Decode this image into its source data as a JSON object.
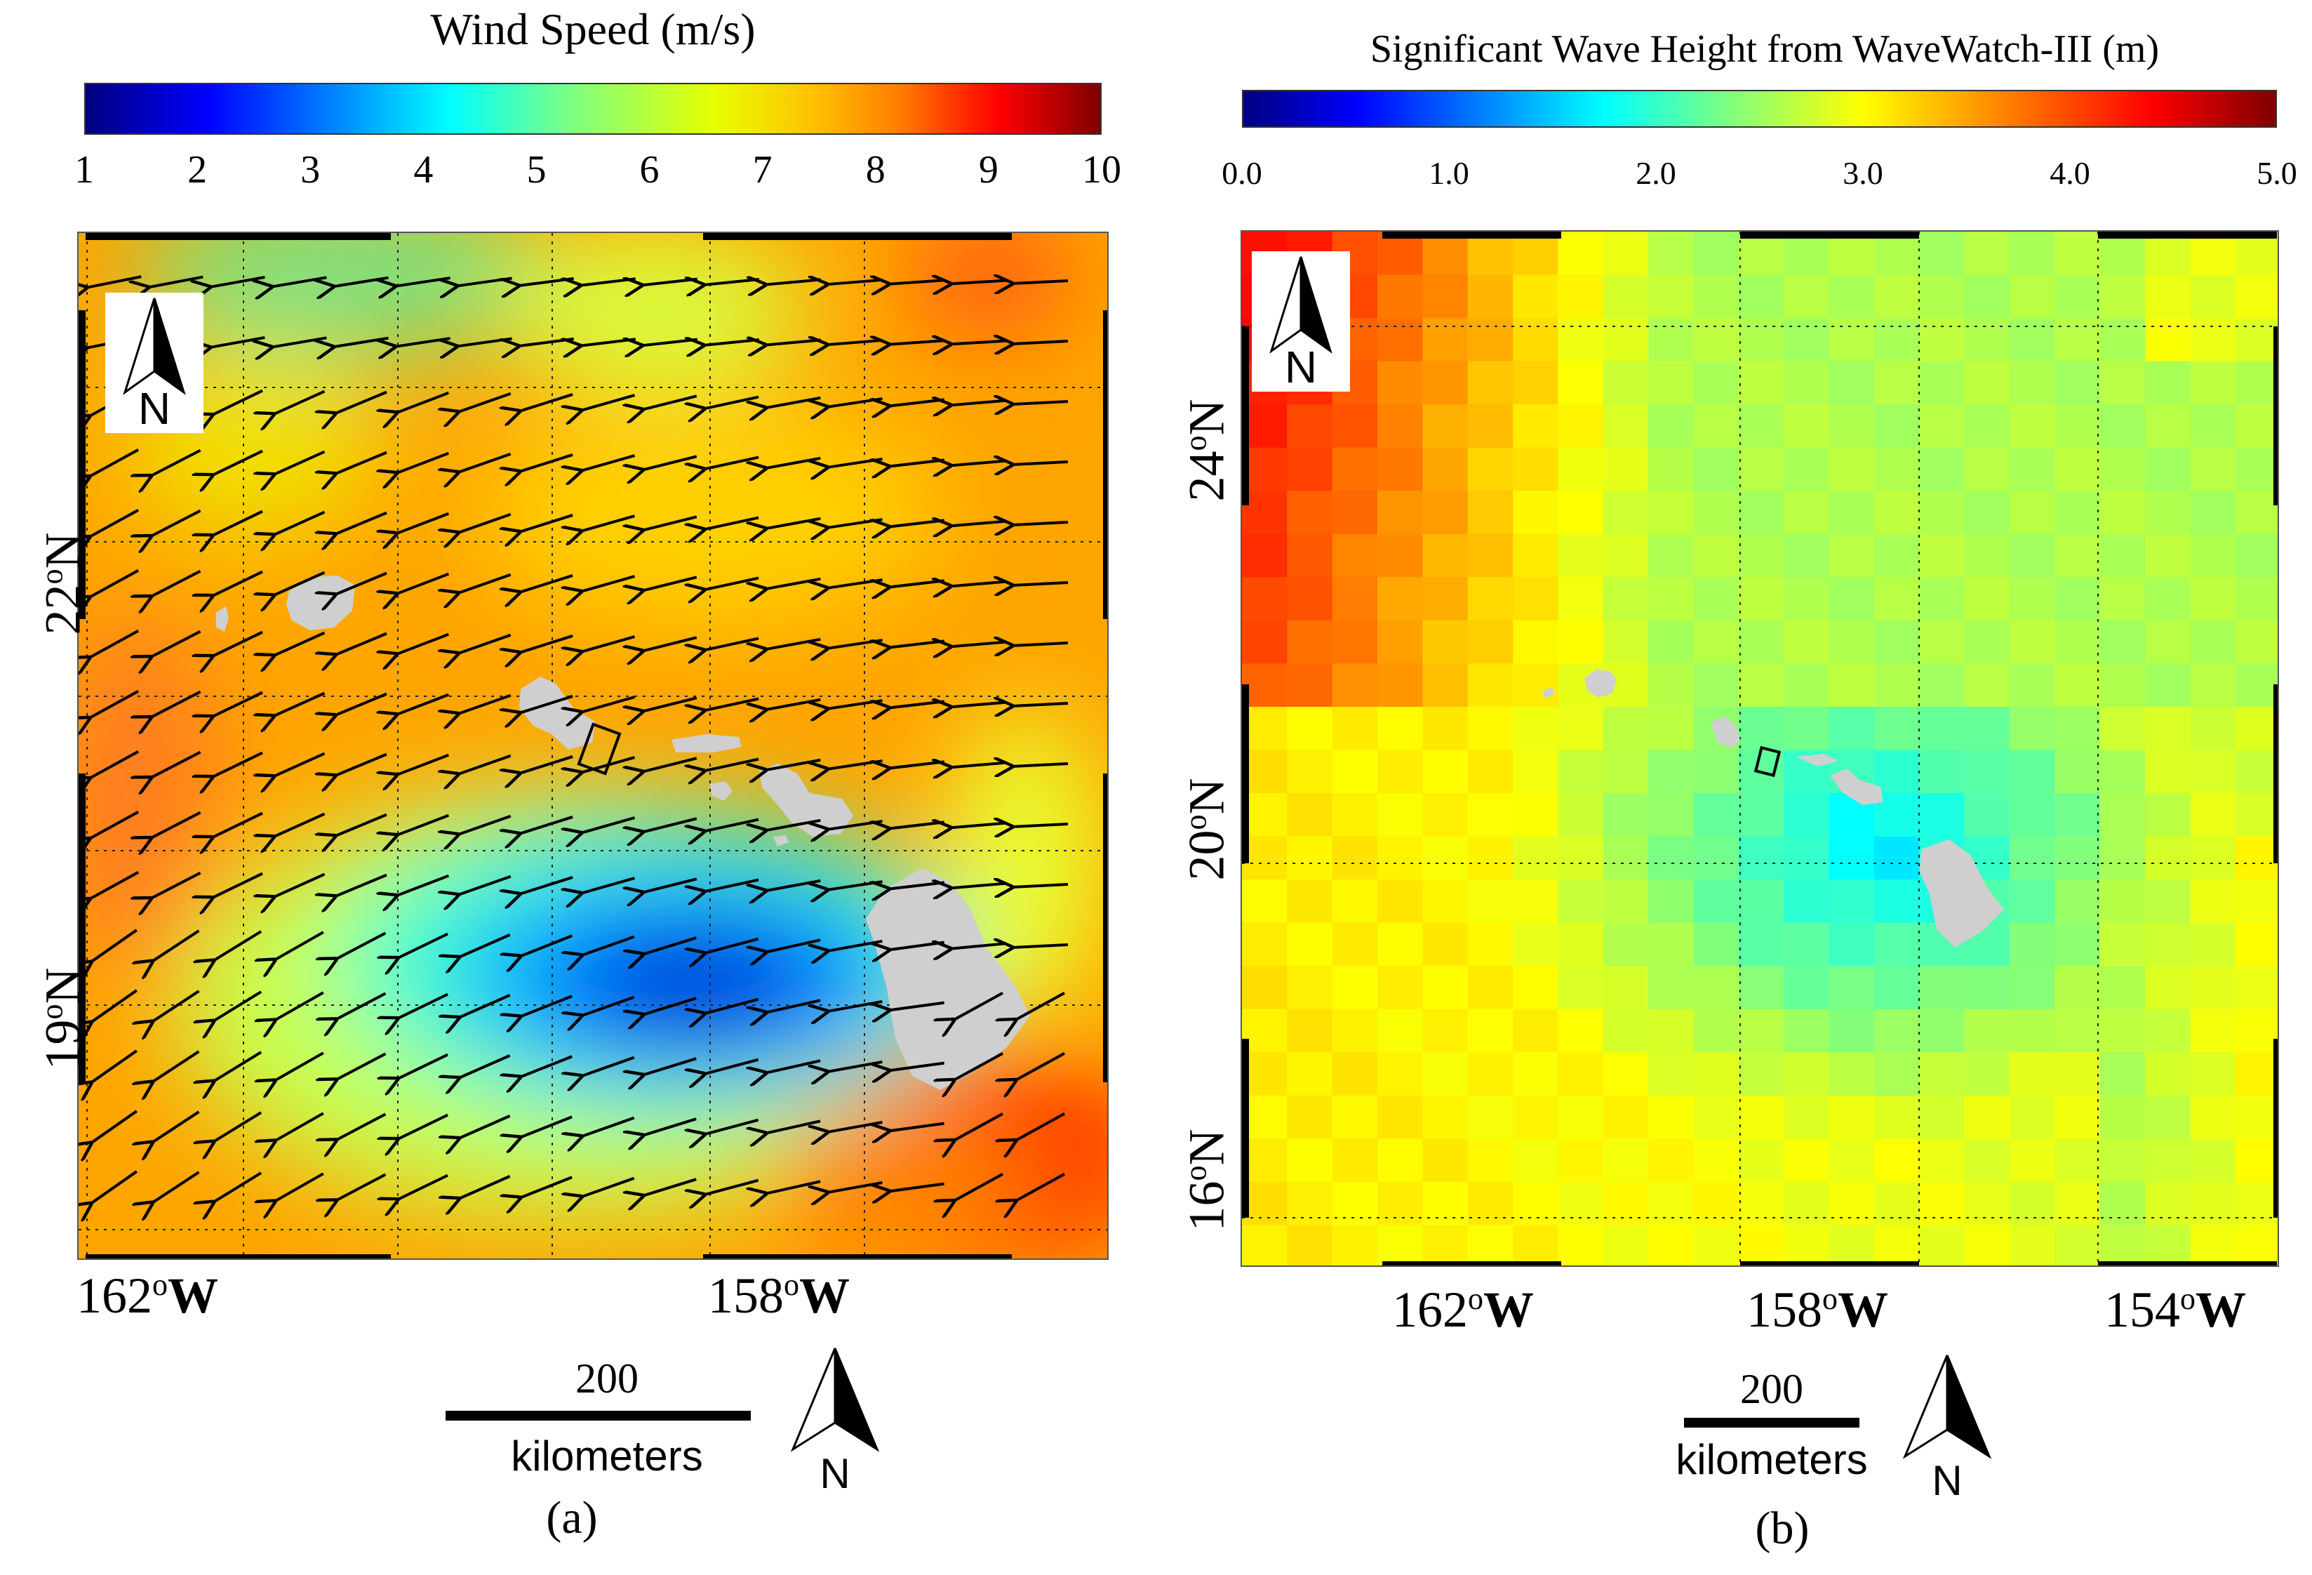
{
  "panel_a": {
    "colorbar": {
      "title": "Wind Speed (m/s)",
      "ticks": [
        "1",
        "2",
        "3",
        "4",
        "5",
        "6",
        "7",
        "8",
        "9",
        "10"
      ],
      "colors": [
        "#00007f",
        "#0000ff",
        "#007fff",
        "#00ffff",
        "#7fff7f",
        "#ffff00",
        "#ff7f00",
        "#ff0000",
        "#7f0000"
      ]
    },
    "lon_labels": [
      {
        "deg": "162",
        "sup": "o",
        "dir": "W"
      },
      {
        "deg": "158",
        "sup": "o",
        "dir": "W"
      }
    ],
    "lat_labels": [
      {
        "deg": "22",
        "sup": "o",
        "dir": "N"
      },
      {
        "deg": "19",
        "sup": "o",
        "dir": "N"
      }
    ],
    "north_arrow": "N",
    "scale_bar": {
      "value": "200",
      "unit": "kilometers"
    },
    "scale_north": "N",
    "label": "(a)"
  },
  "panel_b": {
    "colorbar": {
      "title": "Significant Wave Height from WaveWatch-III (m)",
      "ticks": [
        "0.0",
        "1.0",
        "2.0",
        "3.0",
        "4.0",
        "5.0"
      ],
      "colors": [
        "#00007f",
        "#0000ff",
        "#007fff",
        "#00ffff",
        "#7fff7f",
        "#ffff00",
        "#ff7f00",
        "#ff0000",
        "#7f0000"
      ]
    },
    "lon_labels": [
      {
        "deg": "162",
        "sup": "o",
        "dir": "W"
      },
      {
        "deg": "158",
        "sup": "o",
        "dir": "W"
      },
      {
        "deg": "154",
        "sup": "o",
        "dir": "W"
      }
    ],
    "lat_labels": [
      {
        "deg": "24",
        "sup": "o",
        "dir": "N"
      },
      {
        "deg": "20",
        "sup": "o",
        "dir": "N"
      },
      {
        "deg": "16",
        "sup": "o",
        "dir": "N"
      }
    ],
    "north_arrow": "N",
    "scale_bar": {
      "value": "200",
      "unit": "kilometers"
    },
    "scale_north": "N",
    "label": "(b)"
  },
  "colors": {
    "land": "#cfcfcf",
    "frame": "#000000"
  }
}
